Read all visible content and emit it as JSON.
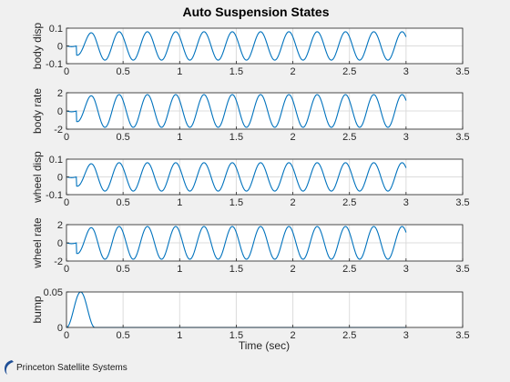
{
  "chart_data": {
    "type": "line",
    "title": "Auto Suspension States",
    "xlabel": "Time (sec)",
    "line_color": "#0072bd",
    "grid": true,
    "panels": [
      {
        "ylabel": "body disp",
        "xlim": [
          0,
          3.5
        ],
        "ylim": [
          -0.1,
          0.1
        ],
        "xticks": [
          "0",
          "0.5",
          "1",
          "1.5",
          "2",
          "2.5",
          "3",
          "3.5"
        ],
        "yticks": [
          "0.1",
          "0",
          "-0.1"
        ],
        "series": [
          {
            "x_end": 3.0,
            "peak_amplitude": 0.08,
            "frequency_hz": 4.0,
            "bump_end": 0.25
          }
        ]
      },
      {
        "ylabel": "body rate",
        "xlim": [
          0,
          3.5
        ],
        "ylim": [
          -2,
          2
        ],
        "xticks": [
          "0",
          "0.5",
          "1",
          "1.5",
          "2",
          "2.5",
          "3",
          "3.5"
        ],
        "yticks": [
          "2",
          "0",
          "-2"
        ],
        "series": [
          {
            "x_end": 3.0,
            "peak_amplitude": 1.8,
            "frequency_hz": 4.0,
            "bump_end": 0.25
          }
        ]
      },
      {
        "ylabel": "wheel disp",
        "xlim": [
          0,
          3.5
        ],
        "ylim": [
          -0.1,
          0.1
        ],
        "xticks": [
          "0",
          "0.5",
          "1",
          "1.5",
          "2",
          "2.5",
          "3",
          "3.5"
        ],
        "yticks": [
          "0.1",
          "0",
          "-0.1"
        ],
        "series": [
          {
            "x_end": 3.0,
            "peak_amplitude": 0.08,
            "frequency_hz": 4.0,
            "bump_end": 0.25
          }
        ]
      },
      {
        "ylabel": "wheel rate",
        "xlim": [
          0,
          3.5
        ],
        "ylim": [
          -2,
          2
        ],
        "xticks": [
          "0",
          "0.5",
          "1",
          "1.5",
          "2",
          "2.5",
          "3",
          "3.5"
        ],
        "yticks": [
          "2",
          "0",
          "-2"
        ],
        "series": [
          {
            "x_end": 3.0,
            "peak_amplitude": 1.8,
            "frequency_hz": 4.0,
            "bump_end": 0.25
          }
        ]
      },
      {
        "ylabel": "bump",
        "xlim": [
          0,
          3.5
        ],
        "ylim": [
          0,
          0.05
        ],
        "xticks": [
          "0",
          "0.5",
          "1",
          "1.5",
          "2",
          "2.5",
          "3",
          "3.5"
        ],
        "yticks": [
          "0.05",
          "0"
        ],
        "series": [
          {
            "x_end": 3.0,
            "bump_peak": 0.05,
            "bump_start": 0.0,
            "bump_end": 0.25
          }
        ]
      }
    ]
  },
  "logo": {
    "text": "Princeton Satellite Systems"
  }
}
